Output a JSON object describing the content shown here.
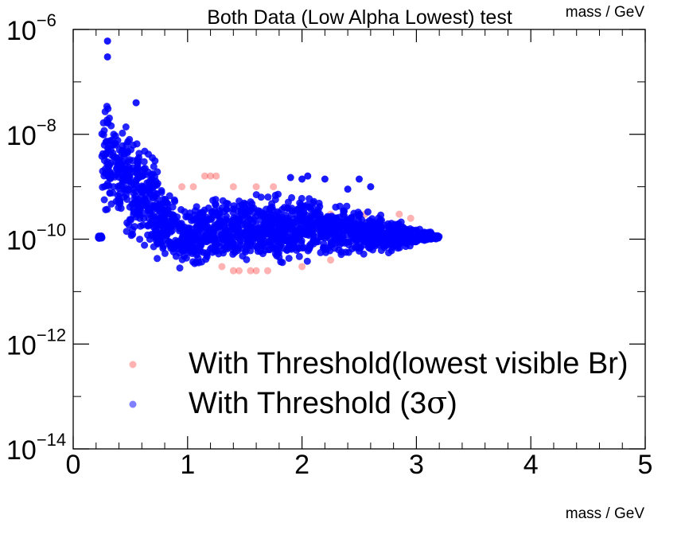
{
  "chart_data": {
    "type": "scatter",
    "title": "Both Data (Low Alpha Lowest) test",
    "xlabel": "mass / GeV",
    "corner_label": "mass / GeV",
    "ylabel": "",
    "xlim": [
      0,
      5
    ],
    "ylim": [
      1e-14,
      1e-06
    ],
    "yscale": "log",
    "x_ticks": [
      {
        "value": 0,
        "label": "0"
      },
      {
        "value": 1,
        "label": "1"
      },
      {
        "value": 2,
        "label": "2"
      },
      {
        "value": 3,
        "label": "3"
      },
      {
        "value": 4,
        "label": "4"
      },
      {
        "value": 5,
        "label": "5"
      }
    ],
    "y_ticks": [
      {
        "value": 1e-14,
        "base": "10",
        "exp": "−14"
      },
      {
        "value": 1e-12,
        "base": "10",
        "exp": "−12"
      },
      {
        "value": 1e-10,
        "base": "10",
        "exp": "−10"
      },
      {
        "value": 1e-08,
        "base": "10",
        "exp": "−8"
      },
      {
        "value": 1e-06,
        "base": "10",
        "exp": "−6"
      }
    ],
    "grid": false,
    "legend_position": "bottom-left",
    "series": [
      {
        "name": "With Threshold(lowest visible Br)",
        "color": "#ff0000",
        "opacity": 0.3,
        "points": [
          [
            1.15,
            1.6e-09
          ],
          [
            1.2,
            1.6e-09
          ],
          [
            1.25,
            1.6e-09
          ],
          [
            1.05,
            1e-09
          ],
          [
            1.4,
            1e-09
          ],
          [
            1.6,
            1e-09
          ],
          [
            1.75,
            1e-09
          ],
          [
            2.25,
            3e-10
          ],
          [
            2.55,
            3e-10
          ],
          [
            2.85,
            3e-10
          ],
          [
            2.95,
            2.5e-10
          ],
          [
            1.45,
            2.5e-11
          ],
          [
            1.55,
            2.5e-11
          ],
          [
            1.6,
            2.5e-11
          ],
          [
            1.4,
            2.5e-11
          ],
          [
            2.25,
            4e-11
          ],
          [
            1.7,
            2.5e-11
          ],
          [
            0.95,
            1e-09
          ],
          [
            2.0,
            3e-11
          ],
          [
            1.3,
            3e-11
          ]
        ]
      },
      {
        "name": "With Threshold (3σ)",
        "name_prefix": "With Threshold (3",
        "name_symbol": "σ",
        "name_suffix": ")",
        "color": "#0000ff",
        "opacity": 0.5
      }
    ],
    "blue_envelope": {
      "x_min": 0.22,
      "x_max": 3.2,
      "upper": [
        [
          0.25,
          1e-06
        ],
        [
          0.3,
          1.2e-07
        ],
        [
          0.4,
          4e-08
        ],
        [
          0.5,
          2.5e-08
        ],
        [
          0.6,
          1.5e-08
        ],
        [
          0.7,
          8e-09
        ],
        [
          0.8,
          2e-09
        ],
        [
          0.9,
          8e-10
        ],
        [
          1.0,
          4e-10
        ],
        [
          1.1,
          9e-10
        ],
        [
          1.5,
          9e-10
        ],
        [
          2.0,
          9e-10
        ],
        [
          2.5,
          5e-10
        ],
        [
          2.8,
          3e-10
        ],
        [
          3.2,
          1.2e-10
        ]
      ],
      "lower": [
        [
          0.25,
          1.2e-10
        ],
        [
          0.4,
          8e-11
        ],
        [
          0.6,
          4e-11
        ],
        [
          0.7,
          2e-11
        ],
        [
          1.0,
          2e-11
        ],
        [
          1.5,
          2.5e-11
        ],
        [
          2.0,
          3e-11
        ],
        [
          2.5,
          4e-11
        ],
        [
          2.8,
          5e-11
        ],
        [
          3.2,
          1e-10
        ]
      ]
    }
  }
}
